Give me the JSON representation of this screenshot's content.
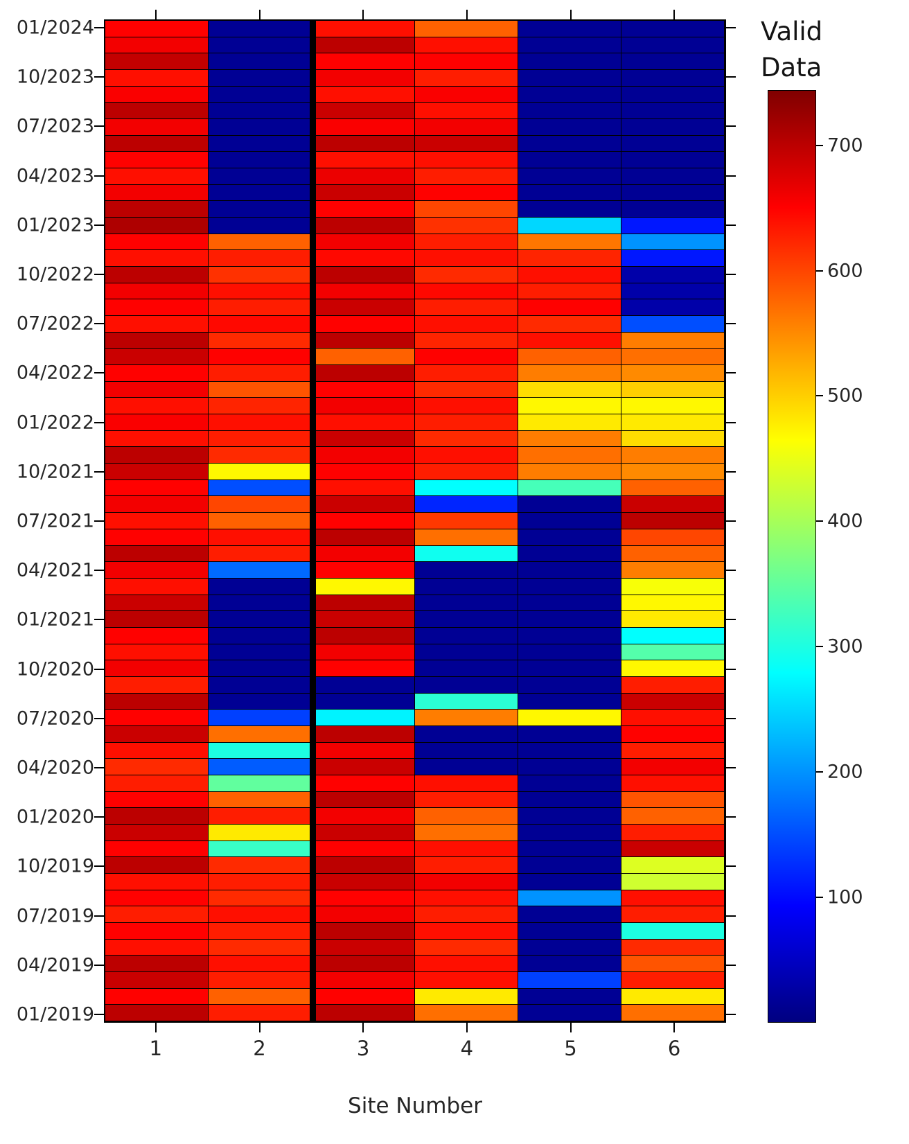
{
  "chart_data": {
    "type": "heatmap",
    "title": "",
    "xlabel": "Site Number",
    "colorbar_title": "Valid Data",
    "colorbar_title_lines": [
      "Valid",
      "Data"
    ],
    "colormap": "jet",
    "vmin": 0,
    "vmax": 744,
    "colorbar_ticks": [
      700,
      600,
      500,
      400,
      300,
      200,
      100
    ],
    "grid_lines": "on",
    "separator_after_column": 2,
    "x_categories": [
      "1",
      "2",
      "3",
      "4",
      "5",
      "6"
    ],
    "y_tick_labels": [
      "01/2024",
      "10/2023",
      "07/2023",
      "04/2023",
      "01/2023",
      "10/2022",
      "07/2022",
      "04/2022",
      "01/2022",
      "10/2021",
      "07/2021",
      "04/2021",
      "01/2021",
      "10/2020",
      "07/2020",
      "04/2020",
      "01/2020",
      "10/2019",
      "07/2019",
      "04/2019",
      "01/2019"
    ],
    "rows_months_top_to_bottom": [
      "01/2024",
      "12/2023",
      "11/2023",
      "10/2023",
      "09/2023",
      "08/2023",
      "07/2023",
      "06/2023",
      "05/2023",
      "04/2023",
      "03/2023",
      "02/2023",
      "01/2023",
      "12/2022",
      "11/2022",
      "10/2022",
      "09/2022",
      "08/2022",
      "07/2022",
      "06/2022",
      "05/2022",
      "04/2022",
      "03/2022",
      "02/2022",
      "01/2022",
      "12/2021",
      "11/2021",
      "10/2021",
      "09/2021",
      "08/2021",
      "07/2021",
      "06/2021",
      "05/2021",
      "04/2021",
      "03/2021",
      "02/2021",
      "01/2021",
      "12/2020",
      "11/2020",
      "10/2020",
      "09/2020",
      "08/2020",
      "07/2020",
      "06/2020",
      "05/2020",
      "04/2020",
      "03/2020",
      "02/2020",
      "01/2020",
      "12/2019",
      "11/2019",
      "10/2019",
      "09/2019",
      "08/2019",
      "07/2019",
      "06/2019",
      "05/2019",
      "04/2019",
      "03/2019",
      "02/2019",
      "01/2019"
    ],
    "values": [
      [
        650,
        15,
        640,
        580,
        15,
        15
      ],
      [
        660,
        15,
        700,
        640,
        15,
        15
      ],
      [
        695,
        15,
        650,
        650,
        15,
        15
      ],
      [
        640,
        15,
        660,
        630,
        15,
        15
      ],
      [
        655,
        15,
        640,
        655,
        15,
        15
      ],
      [
        700,
        15,
        690,
        640,
        15,
        15
      ],
      [
        660,
        15,
        655,
        660,
        15,
        15
      ],
      [
        700,
        15,
        700,
        690,
        15,
        15
      ],
      [
        650,
        15,
        640,
        640,
        15,
        15
      ],
      [
        640,
        15,
        665,
        630,
        15,
        15
      ],
      [
        660,
        15,
        690,
        650,
        15,
        15
      ],
      [
        700,
        15,
        650,
        600,
        15,
        15
      ],
      [
        710,
        15,
        700,
        615,
        250,
        110
      ],
      [
        650,
        580,
        660,
        630,
        565,
        200
      ],
      [
        640,
        630,
        645,
        640,
        625,
        110
      ],
      [
        700,
        615,
        700,
        620,
        640,
        30
      ],
      [
        660,
        640,
        660,
        645,
        630,
        30
      ],
      [
        650,
        630,
        690,
        630,
        650,
        30
      ],
      [
        640,
        645,
        650,
        640,
        620,
        150
      ],
      [
        700,
        620,
        700,
        625,
        640,
        560
      ],
      [
        690,
        650,
        580,
        650,
        580,
        570
      ],
      [
        650,
        630,
        700,
        630,
        560,
        550
      ],
      [
        660,
        590,
        650,
        620,
        490,
        500
      ],
      [
        640,
        625,
        660,
        640,
        470,
        470
      ],
      [
        655,
        640,
        640,
        630,
        480,
        480
      ],
      [
        640,
        630,
        690,
        620,
        560,
        490
      ],
      [
        700,
        620,
        660,
        640,
        570,
        560
      ],
      [
        690,
        470,
        650,
        630,
        560,
        550
      ],
      [
        650,
        150,
        640,
        280,
        330,
        580
      ],
      [
        660,
        600,
        690,
        120,
        15,
        690
      ],
      [
        640,
        580,
        650,
        610,
        15,
        700
      ],
      [
        650,
        640,
        700,
        570,
        15,
        600
      ],
      [
        700,
        630,
        660,
        290,
        15,
        580
      ],
      [
        660,
        170,
        650,
        15,
        15,
        560
      ],
      [
        640,
        15,
        470,
        15,
        15,
        460
      ],
      [
        690,
        15,
        700,
        15,
        15,
        470
      ],
      [
        700,
        15,
        690,
        15,
        15,
        480
      ],
      [
        650,
        15,
        700,
        15,
        15,
        280
      ],
      [
        640,
        15,
        660,
        15,
        15,
        340
      ],
      [
        660,
        15,
        650,
        15,
        15,
        470
      ],
      [
        630,
        15,
        15,
        15,
        15,
        630
      ],
      [
        700,
        15,
        15,
        310,
        15,
        690
      ],
      [
        650,
        140,
        270,
        560,
        470,
        640
      ],
      [
        690,
        570,
        700,
        15,
        15,
        650
      ],
      [
        640,
        300,
        660,
        15,
        15,
        630
      ],
      [
        620,
        160,
        690,
        15,
        15,
        660
      ],
      [
        630,
        350,
        650,
        640,
        15,
        640
      ],
      [
        650,
        580,
        700,
        630,
        15,
        590
      ],
      [
        700,
        630,
        660,
        580,
        15,
        580
      ],
      [
        690,
        480,
        690,
        570,
        15,
        630
      ],
      [
        650,
        320,
        650,
        640,
        15,
        690
      ],
      [
        700,
        620,
        700,
        630,
        15,
        440
      ],
      [
        640,
        630,
        690,
        660,
        15,
        430
      ],
      [
        650,
        620,
        650,
        640,
        200,
        640
      ],
      [
        630,
        640,
        660,
        630,
        15,
        630
      ],
      [
        650,
        630,
        700,
        640,
        15,
        300
      ],
      [
        640,
        620,
        690,
        620,
        15,
        620
      ],
      [
        700,
        640,
        700,
        640,
        15,
        590
      ],
      [
        690,
        630,
        660,
        640,
        140,
        630
      ],
      [
        650,
        580,
        650,
        480,
        15,
        480
      ],
      [
        700,
        630,
        700,
        570,
        15,
        570
      ]
    ]
  }
}
